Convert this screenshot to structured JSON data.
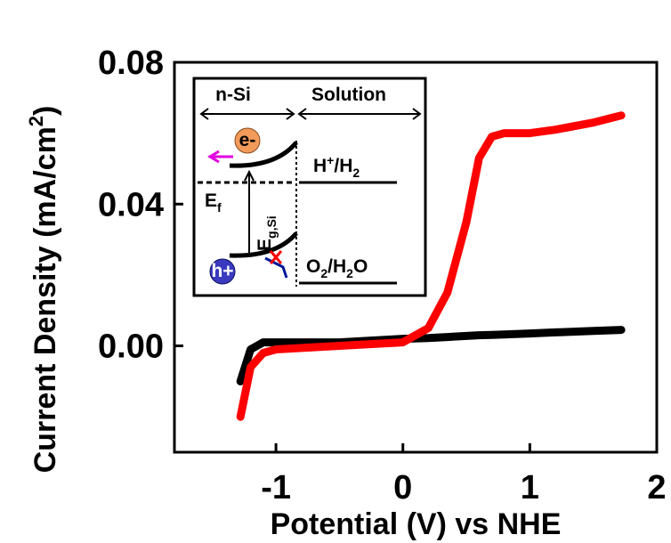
{
  "chart_data": {
    "type": "line",
    "x_label": "Potential (V) vs NHE",
    "y_label": [
      "Current Density (mA/cm",
      "2",
      ")"
    ],
    "x": [
      -1.28,
      -1.2,
      -1.1,
      -1.0,
      -0.5,
      0,
      0.2,
      0.35,
      0.5,
      0.6,
      0.7,
      0.8,
      1.0,
      1.2,
      1.5,
      1.72
    ],
    "series": [
      {
        "color": "#000000",
        "values": [
          -0.01,
          -0.001,
          0.001,
          0.001,
          0.001,
          0.002,
          0.0022,
          0.0025,
          0.0028,
          0.003,
          0.0031,
          0.0032,
          0.0035,
          0.0038,
          0.0042,
          0.0045
        ]
      },
      {
        "color": "#ff0000",
        "values": [
          -0.02,
          -0.006,
          -0.002,
          -0.001,
          0,
          0.001,
          0.005,
          0.015,
          0.035,
          0.053,
          0.059,
          0.06,
          0.06,
          0.061,
          0.063,
          0.065
        ]
      }
    ],
    "xlim": [
      -1.8,
      2
    ],
    "xticks": [
      -1,
      0,
      1,
      2
    ],
    "ylim": [
      -0.03,
      0.08
    ],
    "yticks": [
      {
        "value": 0,
        "label": "0.00"
      },
      {
        "value": 0.04,
        "label": "0.04"
      },
      {
        "value": 0.08,
        "label": "0.08"
      }
    ],
    "inset": {
      "left_label": "n-Si",
      "right_label": "Solution",
      "electron": "e-",
      "hole": "h+",
      "fermi": [
        "E",
        "f"
      ],
      "gap": [
        "E",
        "g,Si"
      ],
      "reduction": [
        "H",
        "+",
        "/H",
        "2"
      ],
      "oxidation": [
        "O",
        "2",
        "/H",
        "2",
        "O"
      ]
    }
  }
}
